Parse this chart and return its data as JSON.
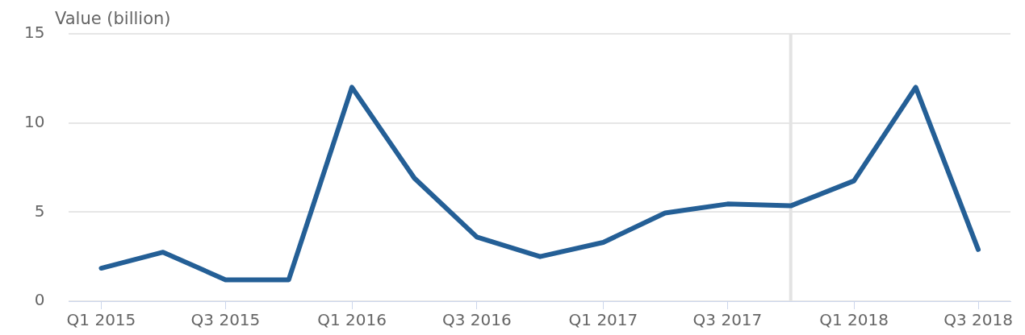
{
  "chart_data": {
    "type": "line",
    "ylabel": "Value (billion)",
    "x": [
      "2015-01-01",
      "2015-04-01",
      "2015-07-01",
      "2015-10-01",
      "2016-01-01",
      "2016-04-01",
      "2016-07-01",
      "2016-10-01",
      "2017-01-01",
      "2017-04-01",
      "2017-07-01",
      "2017-10-01",
      "2018-01-01",
      "2018-04-01",
      "2018-07-01"
    ],
    "series": [
      {
        "color": "#245f96",
        "values": [
          1.85,
          2.75,
          1.2,
          1.2,
          12.0,
          6.9,
          3.6,
          2.5,
          3.3,
          4.95,
          5.45,
          5.35,
          6.75,
          12.0,
          2.9
        ]
      }
    ],
    "xlim": [
      "2014-11-15",
      "2018-08-17"
    ],
    "xticks": [
      {
        "value": "2015-01-01",
        "label": "Q1 2015"
      },
      {
        "value": "2015-07-01",
        "label": "Q3 2015"
      },
      {
        "value": "2016-01-01",
        "label": "Q1 2016"
      },
      {
        "value": "2016-07-01",
        "label": "Q3 2016"
      },
      {
        "value": "2017-01-01",
        "label": "Q1 2017"
      },
      {
        "value": "2017-07-01",
        "label": "Q3 2017"
      },
      {
        "value": "2018-01-01",
        "label": "Q1 2018"
      },
      {
        "value": "2018-07-01",
        "label": "Q3 2018"
      }
    ],
    "ylim": [
      0,
      15
    ],
    "yticks": [
      0,
      5,
      10,
      15
    ],
    "grid": "y",
    "legend": false,
    "marker": "none",
    "line_style": "solid",
    "ref_lines": [
      {
        "axis": "x",
        "value": "2017-10-01",
        "color": "#e3e3e3"
      }
    ]
  }
}
